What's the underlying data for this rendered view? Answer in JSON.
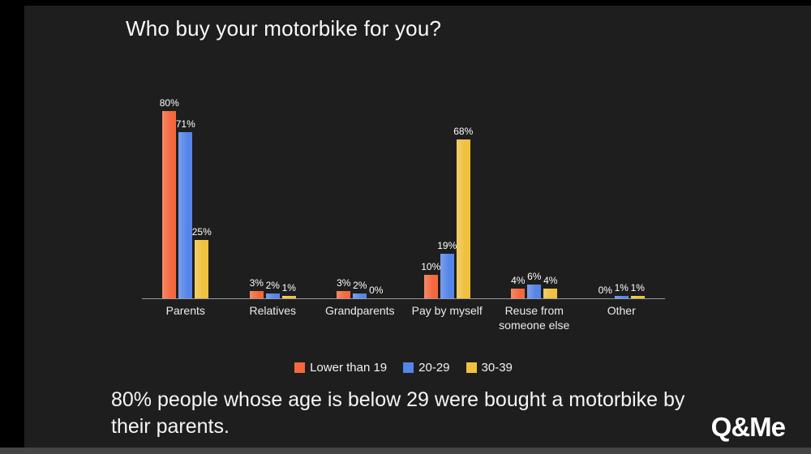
{
  "title": "Who buy your motorbike for you?",
  "caption": "80% people whose age is below 29 were bought a motorbike by their parents.",
  "logo_text": "Q&Me",
  "chart_data": {
    "type": "bar",
    "title": "Who buy your motorbike for you?",
    "categories": [
      "Parents",
      "Relatives",
      "Grandparents",
      "Pay by myself",
      "Reuse from someone else",
      "Other"
    ],
    "series": [
      {
        "name": "Lower than 19",
        "color": "#f4683e",
        "values": [
          80,
          3,
          3,
          10,
          4,
          0
        ]
      },
      {
        "name": "20-29",
        "color": "#5585e8",
        "values": [
          71,
          2,
          2,
          19,
          6,
          1
        ]
      },
      {
        "name": "30-39",
        "color": "#efc13e",
        "values": [
          25,
          1,
          0,
          68,
          4,
          1
        ]
      }
    ],
    "value_suffix": "%",
    "xlabel": "",
    "ylabel": "",
    "ylim": [
      0,
      85
    ],
    "grid": false,
    "legend_position": "bottom",
    "data_labels": true
  }
}
